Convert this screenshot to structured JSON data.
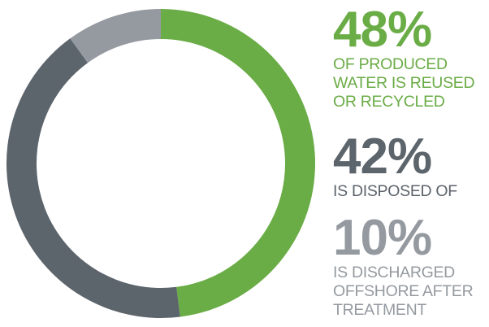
{
  "chart_data": {
    "type": "pie",
    "donut": true,
    "start_angle_deg": 0,
    "direction": "clockwise",
    "title": "",
    "legend": "right",
    "slices": [
      {
        "value": 48,
        "label": "48%",
        "description": [
          "OF PRODUCED",
          "WATER IS REUSED",
          "OR RECYCLED"
        ],
        "color": "#6aac46"
      },
      {
        "value": 42,
        "label": "42%",
        "description": [
          "IS DISPOSED OF"
        ],
        "color": "#5c646c"
      },
      {
        "value": 10,
        "label": "10%",
        "description": [
          "IS DISCHARGED",
          "OFFSHORE AFTER",
          "TREATMENT"
        ],
        "color": "#959aa0"
      }
    ]
  }
}
